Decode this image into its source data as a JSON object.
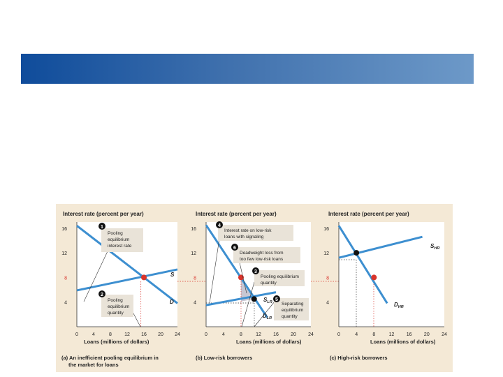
{
  "slide": {
    "banner_color_start": "#0f4c9b",
    "banner_color_end": "#6d99c8"
  },
  "colors": {
    "panel_bg": "#f4e9d6",
    "plot_bg": "#ffffff",
    "curve": "#3d8fd0",
    "red": "#d9342b",
    "black": "#111111",
    "callout": "#e9e3d8",
    "shade": "#c8c7d3"
  },
  "chart_data": [
    {
      "type": "line",
      "panel": "a",
      "ylabel": "Interest rate (percent per year)",
      "xlabel": "Loans (millions of dollars)",
      "caption_line1": "(a) An inefficient pooling equilibrium in",
      "caption_line2": "the market for loans",
      "x_ticks": [
        "0",
        "4",
        "8",
        "12",
        "16",
        "20",
        "24"
      ],
      "y_ticks": [
        "4",
        "8",
        "12",
        "16"
      ],
      "xlim": [
        0,
        24
      ],
      "ylim": [
        0,
        17
      ],
      "series": [
        {
          "name": "S",
          "points": [
            [
              0,
              5.9
            ],
            [
              24,
              9.3
            ]
          ]
        },
        {
          "name": "D",
          "points": [
            [
              0,
              16.4
            ],
            [
              24,
              3.8
            ]
          ]
        }
      ],
      "equilibrium": {
        "x": 16,
        "y": 8,
        "color": "red"
      },
      "annotations": [
        {
          "num": "1",
          "lines": [
            "Pooling",
            "equilibrium",
            "interest rate"
          ]
        },
        {
          "num": "2",
          "lines": [
            "Pooling",
            "equilibrium",
            "quantity"
          ]
        }
      ]
    },
    {
      "type": "line",
      "panel": "b",
      "ylabel": "Interest rate (percent per year)",
      "xlabel": "Loans (millions of dollars)",
      "caption_line1": "(b) Low-risk borrowers",
      "x_ticks": [
        "0",
        "4",
        "8",
        "12",
        "16",
        "20",
        "24"
      ],
      "y_ticks": [
        "4",
        "8",
        "12",
        "16"
      ],
      "xlim": [
        0,
        24
      ],
      "ylim": [
        0,
        17
      ],
      "series": [
        {
          "name": "S",
          "sub": "LR",
          "points": [
            [
              0,
              3.5
            ],
            [
              16,
              5.6
            ]
          ]
        },
        {
          "name": "D",
          "sub": "LR",
          "points": [
            [
              0,
              16.5
            ],
            [
              14,
              1.5
            ]
          ]
        }
      ],
      "points_marked": [
        {
          "x": 8,
          "y": 8,
          "color": "red"
        },
        {
          "x": 11,
          "y": 4.5,
          "color": "black"
        }
      ],
      "deadweight_triangle": [
        [
          8,
          8
        ],
        [
          8,
          4.1
        ],
        [
          11,
          4.5
        ]
      ],
      "annotations": [
        {
          "num": "4",
          "lines": [
            "Interest rate on low-risk",
            "loans with signaling"
          ]
        },
        {
          "num": "6",
          "lines": [
            "Deadweight loss from",
            "too few low-risk loans"
          ]
        },
        {
          "num": "3",
          "lines": [
            "Pooling equilibrium",
            "quantity"
          ]
        },
        {
          "num": "5",
          "lines": [
            "Separating",
            "equilibrium",
            "quantity"
          ]
        }
      ]
    },
    {
      "type": "line",
      "panel": "c",
      "ylabel": "Interest rate (percent per year)",
      "xlabel": "Loans (millions of dollars)",
      "caption_line1": "(c) High-risk borrowers",
      "x_ticks": [
        "0",
        "4",
        "8",
        "12",
        "16",
        "20",
        "24"
      ],
      "y_ticks": [
        "4",
        "8",
        "12",
        "16"
      ],
      "xlim": [
        0,
        24
      ],
      "ylim": [
        0,
        17
      ],
      "series": [
        {
          "name": "S",
          "sub": "HR",
          "points": [
            [
              0,
              11.2
            ],
            [
              19,
              14.6
            ]
          ]
        },
        {
          "name": "D",
          "sub": "HR",
          "points": [
            [
              0,
              16.4
            ],
            [
              11,
              3.8
            ]
          ]
        }
      ],
      "points_marked": [
        {
          "x": 4,
          "y": 12,
          "color": "black"
        },
        {
          "x": 8,
          "y": 8,
          "color": "red"
        }
      ]
    }
  ]
}
